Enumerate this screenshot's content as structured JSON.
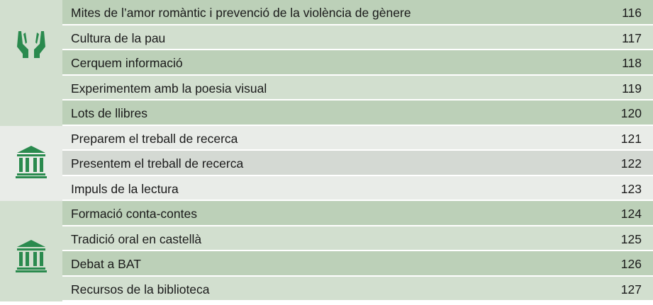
{
  "groups": [
    {
      "rows": [
        {
          "title": "Mites de l’amor romàntic i prevenció de la violència de gènere",
          "page": 116
        },
        {
          "title": "Cultura de la pau",
          "page": 117
        },
        {
          "title": "Cerquem informació",
          "page": 118
        },
        {
          "title": "Experimentem amb la poesia visual",
          "page": 119
        },
        {
          "title": "Lots de llibres",
          "page": 120
        }
      ]
    },
    {
      "rows": [
        {
          "title": "Preparem el treball de recerca",
          "page": 121
        },
        {
          "title": "Presentem el treball de recerca",
          "page": 122
        },
        {
          "title": "Impuls de la lectura",
          "page": 123
        }
      ]
    },
    {
      "rows": [
        {
          "title": "Formació conta-contes",
          "page": 124
        },
        {
          "title": "Tradició oral en castellà",
          "page": 125
        },
        {
          "title": "Debat a BAT",
          "page": 126
        },
        {
          "title": "Recursos de la biblioteca",
          "page": 127
        }
      ]
    }
  ]
}
